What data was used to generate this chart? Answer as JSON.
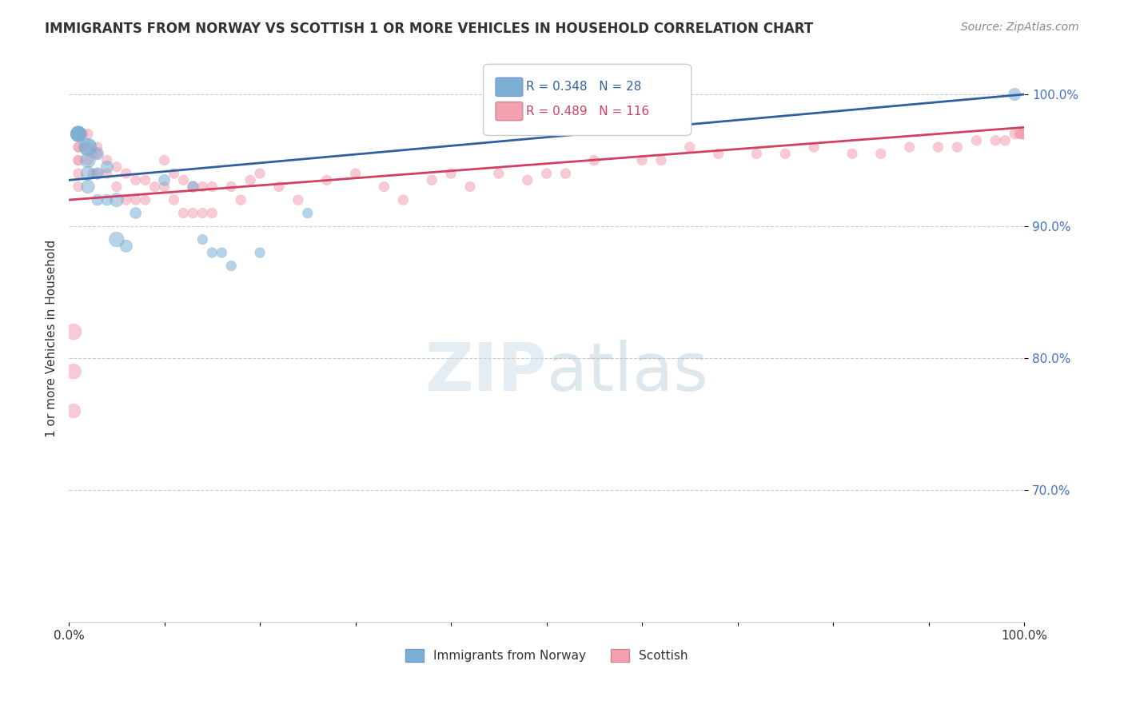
{
  "title": "IMMIGRANTS FROM NORWAY VS SCOTTISH 1 OR MORE VEHICLES IN HOUSEHOLD CORRELATION CHART",
  "source": "Source: ZipAtlas.com",
  "ylabel": "1 or more Vehicles in Household",
  "xlim": [
    0.0,
    1.0
  ],
  "ylim": [
    0.6,
    1.03
  ],
  "yticks": [
    0.7,
    0.8,
    0.9,
    1.0
  ],
  "ytick_labels": [
    "70.0%",
    "80.0%",
    "90.0%",
    "100.0%"
  ],
  "xticks": [
    0.0,
    0.1,
    0.2,
    0.3,
    0.4,
    0.5,
    0.6,
    0.7,
    0.8,
    0.9,
    1.0
  ],
  "xtick_labels": [
    "0.0%",
    "",
    "",
    "",
    "",
    "",
    "",
    "",
    "",
    "",
    "100.0%"
  ],
  "norway_color": "#7bafd4",
  "scottish_color": "#f4a0b0",
  "norway_line_color": "#3060a0",
  "scottish_line_color": "#d04060",
  "norway_R": 0.348,
  "norway_N": 28,
  "scottish_R": 0.489,
  "scottish_N": 116,
  "norway_scatter_x": [
    0.01,
    0.01,
    0.01,
    0.01,
    0.02,
    0.02,
    0.02,
    0.02,
    0.02,
    0.03,
    0.03,
    0.03,
    0.04,
    0.04,
    0.05,
    0.05,
    0.06,
    0.07,
    0.1,
    0.13,
    0.14,
    0.15,
    0.16,
    0.17,
    0.2,
    0.25,
    0.5,
    0.99
  ],
  "norway_scatter_y": [
    0.97,
    0.97,
    0.97,
    0.97,
    0.96,
    0.96,
    0.95,
    0.94,
    0.93,
    0.955,
    0.94,
    0.92,
    0.945,
    0.92,
    0.92,
    0.89,
    0.885,
    0.91,
    0.935,
    0.93,
    0.89,
    0.88,
    0.88,
    0.87,
    0.88,
    0.91,
    0.998,
    1.0
  ],
  "norway_scatter_size": [
    200,
    200,
    180,
    160,
    250,
    220,
    180,
    160,
    140,
    120,
    110,
    100,
    120,
    100,
    150,
    180,
    120,
    100,
    100,
    100,
    80,
    80,
    80,
    80,
    80,
    80,
    80,
    120
  ],
  "scottish_scatter_x": [
    0.005,
    0.005,
    0.005,
    0.01,
    0.01,
    0.01,
    0.01,
    0.01,
    0.01,
    0.01,
    0.015,
    0.015,
    0.02,
    0.02,
    0.02,
    0.025,
    0.025,
    0.03,
    0.03,
    0.03,
    0.04,
    0.04,
    0.05,
    0.05,
    0.06,
    0.06,
    0.07,
    0.07,
    0.08,
    0.08,
    0.09,
    0.1,
    0.1,
    0.11,
    0.11,
    0.12,
    0.12,
    0.13,
    0.13,
    0.14,
    0.14,
    0.15,
    0.15,
    0.17,
    0.18,
    0.19,
    0.2,
    0.22,
    0.24,
    0.27,
    0.3,
    0.33,
    0.35,
    0.38,
    0.4,
    0.42,
    0.45,
    0.48,
    0.5,
    0.52,
    0.55,
    0.6,
    0.62,
    0.65,
    0.68,
    0.72,
    0.75,
    0.78,
    0.82,
    0.85,
    0.88,
    0.91,
    0.93,
    0.95,
    0.97,
    0.98,
    0.99,
    0.995,
    0.996,
    0.997,
    0.998,
    0.999,
    1.0,
    1.0,
    1.0,
    1.0,
    1.0,
    1.0,
    1.0,
    1.0,
    1.0,
    1.0,
    1.0,
    1.0,
    1.0,
    1.0,
    1.0,
    1.0,
    1.0,
    1.0,
    1.0,
    1.0,
    1.0,
    1.0,
    1.0,
    1.0,
    1.0,
    1.0,
    1.0,
    1.0,
    1.0,
    1.0,
    1.0,
    1.0,
    1.0,
    1.0,
    1.0
  ],
  "scottish_scatter_y": [
    0.82,
    0.79,
    0.76,
    0.97,
    0.96,
    0.96,
    0.95,
    0.95,
    0.94,
    0.93,
    0.97,
    0.96,
    0.97,
    0.96,
    0.95,
    0.955,
    0.94,
    0.96,
    0.955,
    0.94,
    0.95,
    0.94,
    0.945,
    0.93,
    0.94,
    0.92,
    0.935,
    0.92,
    0.935,
    0.92,
    0.93,
    0.95,
    0.93,
    0.94,
    0.92,
    0.935,
    0.91,
    0.93,
    0.91,
    0.93,
    0.91,
    0.93,
    0.91,
    0.93,
    0.92,
    0.935,
    0.94,
    0.93,
    0.92,
    0.935,
    0.94,
    0.93,
    0.92,
    0.935,
    0.94,
    0.93,
    0.94,
    0.935,
    0.94,
    0.94,
    0.95,
    0.95,
    0.95,
    0.96,
    0.955,
    0.955,
    0.955,
    0.96,
    0.955,
    0.955,
    0.96,
    0.96,
    0.96,
    0.965,
    0.965,
    0.965,
    0.97,
    0.97,
    0.97,
    0.97,
    0.97,
    0.97,
    0.97,
    0.97,
    0.97,
    0.97,
    0.97,
    0.97,
    0.97,
    0.97,
    0.97,
    0.97,
    0.97,
    0.97,
    0.97,
    0.97,
    0.97,
    0.97,
    0.97,
    0.97,
    0.97,
    0.97,
    0.97,
    0.97,
    0.97,
    0.97,
    0.97,
    0.97,
    0.97,
    0.97,
    0.97,
    0.97,
    0.97,
    0.97,
    0.97,
    0.97,
    0.97
  ],
  "scottish_scatter_size": [
    200,
    180,
    160,
    80,
    80,
    80,
    80,
    80,
    80,
    80,
    80,
    80,
    80,
    80,
    80,
    80,
    80,
    80,
    80,
    80,
    80,
    80,
    80,
    80,
    80,
    80,
    80,
    80,
    80,
    80,
    80,
    80,
    80,
    80,
    80,
    80,
    80,
    80,
    80,
    80,
    80,
    80,
    80,
    80,
    80,
    80,
    80,
    80,
    80,
    80,
    80,
    80,
    80,
    80,
    80,
    80,
    80,
    80,
    80,
    80,
    80,
    80,
    80,
    80,
    80,
    80,
    80,
    80,
    80,
    80,
    80,
    80,
    80,
    80,
    80,
    80,
    80,
    80,
    80,
    80,
    80,
    80,
    80,
    80,
    80,
    80,
    80,
    80,
    80,
    80,
    80,
    80,
    80,
    80,
    80,
    80,
    80,
    80,
    80,
    80,
    80,
    80,
    80,
    80,
    80,
    80,
    80,
    80,
    80,
    80,
    80
  ],
  "norway_line_x": [
    0.0,
    1.0
  ],
  "norway_line_y": [
    0.935,
    1.0
  ],
  "scottish_line_x": [
    0.0,
    1.0
  ],
  "scottish_line_y": [
    0.92,
    0.975
  ]
}
